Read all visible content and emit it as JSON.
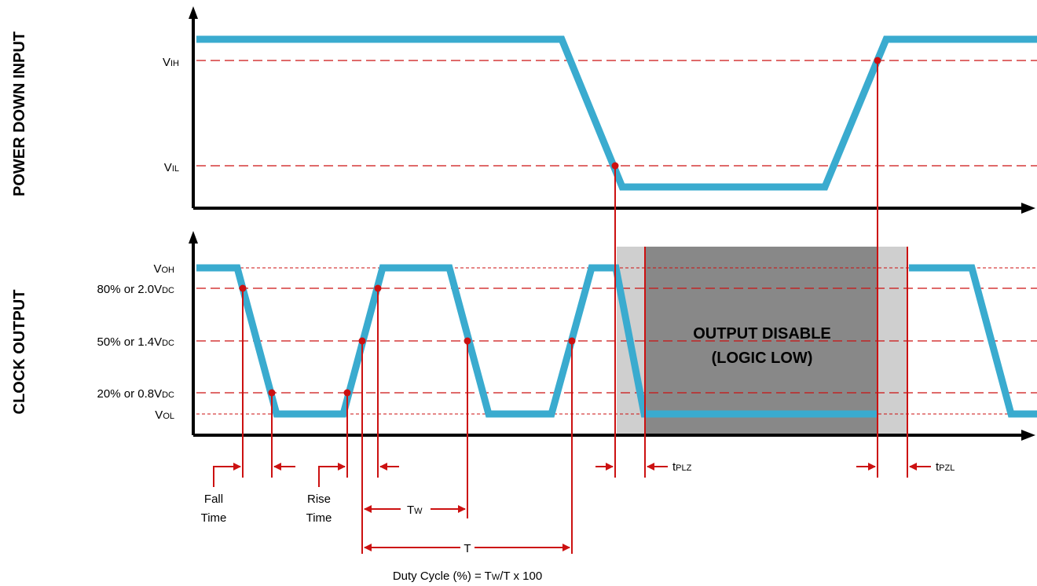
{
  "sections": {
    "power_down": "POWER DOWN INPUT",
    "clock_output": "CLOCK OUTPUT"
  },
  "power_levels": {
    "vih": {
      "main": "V",
      "sub": "IH"
    },
    "vil": {
      "main": "V",
      "sub": "IL"
    }
  },
  "clock_levels": {
    "voh": {
      "main": "V",
      "sub": "OH"
    },
    "p80": {
      "main": "80% or 2.0V",
      "sub": "DC"
    },
    "p50": {
      "main": "50% or 1.4V",
      "sub": "DC"
    },
    "p20": {
      "main": "20% or 0.8V",
      "sub": "DC"
    },
    "vol": {
      "main": "V",
      "sub": "OL"
    }
  },
  "disable_box": {
    "line1": "OUTPUT DISABLE",
    "line2": "(LOGIC LOW)"
  },
  "annotations": {
    "fall_time": {
      "line1": "Fall",
      "line2": "Time"
    },
    "rise_time": {
      "line1": "Rise",
      "line2": "Time"
    },
    "tw": {
      "main": "T",
      "sub": "W"
    },
    "t": "T",
    "tplz": {
      "main": "t",
      "sub": "PLZ"
    },
    "tpzl": {
      "main": "t",
      "sub": "PZL"
    },
    "duty_cycle": {
      "pre": "Duty Cycle (%) = T",
      "sub": "W",
      "post": "/T x 100"
    }
  },
  "colors": {
    "signal": "#3aabcf",
    "marker": "#cc1111",
    "disable_dark": "#888888",
    "disable_light": "#cfcfcf"
  }
}
